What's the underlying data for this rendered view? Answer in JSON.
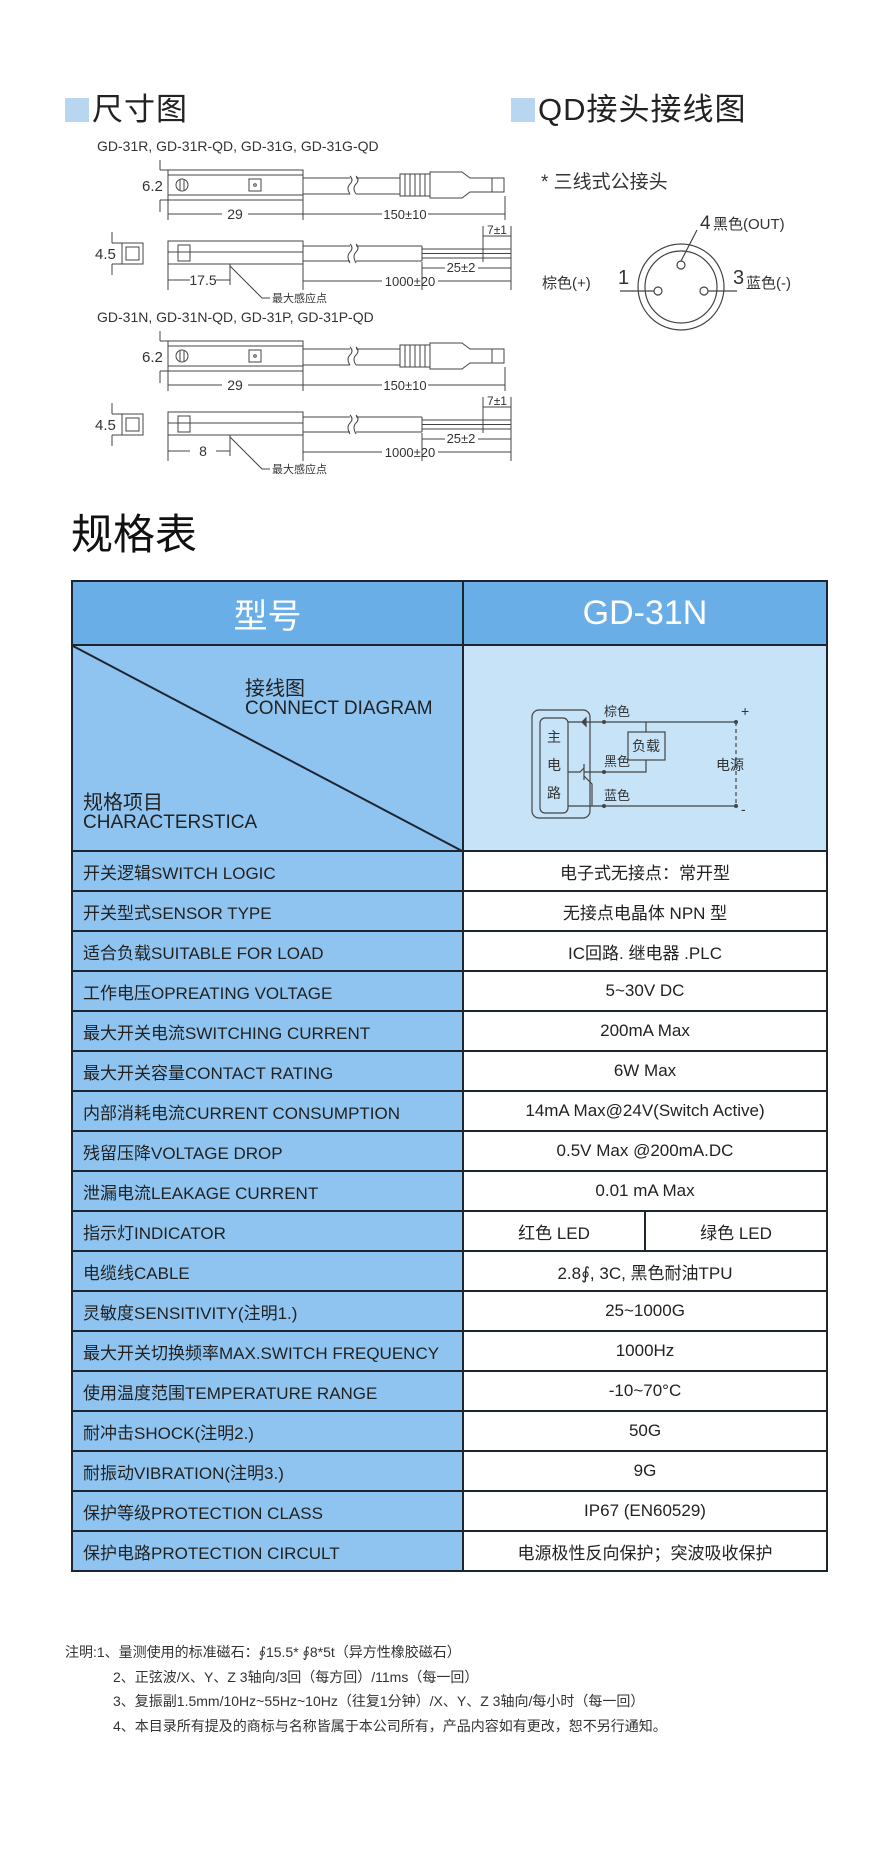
{
  "dimensions": {
    "title": "尺寸图",
    "models_1": "GD-31R, GD-31R-QD, GD-31G, GD-31G-QD",
    "models_2": "GD-31N, GD-31N-QD, GD-31P, GD-31P-QD",
    "height_top": "6.2",
    "length_body": "29",
    "length_cable_qd": "150±10",
    "height_side": "4.5",
    "strip_length": "7±1",
    "sheath_length": "25±2",
    "cable_length": "1000±20",
    "sense_offset_1": "17.5",
    "sense_offset_2": "8",
    "sense_point_label": "最大感应点"
  },
  "qd_wiring": {
    "title": "QD接头接线图",
    "subtitle": "* 三线式公接头",
    "pin4_num": "4",
    "pin4_label": "黑色(OUT)",
    "pin1_num": "1",
    "pin1_label": "棕色(+)",
    "pin3_num": "3",
    "pin3_label": "蓝色(-)"
  },
  "spec": {
    "title": "规格表",
    "header_left": "型号",
    "header_right": "GD-31N",
    "diag_top_cn": "接线图",
    "diag_top_en": "CONNECT DIAGRAM",
    "diag_bottom_cn": "规格项目",
    "diag_bottom_en": "CHARACTERSTICA",
    "circuit": {
      "main_circuit": [
        "主",
        "电",
        "路"
      ],
      "brown": "棕色",
      "black": "黑色",
      "blue": "蓝色",
      "load": "负载",
      "power": "电源",
      "plus": "+",
      "minus": "-"
    },
    "rows": [
      {
        "label": "开关逻辑SWITCH LOGIC",
        "value": "电子式无接点：常开型"
      },
      {
        "label": "开关型式SENSOR TYPE",
        "value": "无接点电晶体 NPN 型"
      },
      {
        "label": "适合负载SUITABLE FOR LOAD",
        "value": "IC回路. 继电器 .PLC"
      },
      {
        "label": "工作电压OPREATING VOLTAGE",
        "value": "5~30V DC"
      },
      {
        "label": "最大开关电流SWITCHING CURRENT",
        "value": "200mA Max"
      },
      {
        "label": "最大开关容量CONTACT RATING",
        "value": "6W Max"
      },
      {
        "label": "内部消耗电流CURRENT CONSUMPTION",
        "value": "14mA Max@24V(Switch Active)"
      },
      {
        "label": "残留压降VOLTAGE DROP",
        "value": "0.5V Max @200mA.DC"
      },
      {
        "label": "泄漏电流LEAKAGE CURRENT",
        "value": "0.01 mA Max"
      },
      {
        "label": "指示灯INDICATOR",
        "value_a": "红色 LED",
        "value_b": "绿色 LED"
      },
      {
        "label": "电缆线CABLE",
        "value": "2.8∮, 3C, 黑色耐油TPU"
      },
      {
        "label": "灵敏度SENSITIVITY(注明1.)",
        "value": "25~1000G"
      },
      {
        "label": "最大开关切换频率MAX.SWITCH FREQUENCY",
        "value": "1000Hz"
      },
      {
        "label": "使用温度范围TEMPERATURE RANGE",
        "value": "-10~70°C"
      },
      {
        "label": "耐冲击SHOCK(注明2.)",
        "value": "50G"
      },
      {
        "label": "耐振动VIBRATION(注明3.)",
        "value": "9G"
      },
      {
        "label": "保护等级PROTECTION CLASS",
        "value": "IP67 (EN60529)"
      },
      {
        "label": "保护电路PROTECTION CIRCULT",
        "value": "电源极性反向保护；突波吸收保护"
      }
    ]
  },
  "notes": [
    "注明:1、量测使用的标准磁石：∮15.5* ∮8*5t（异方性橡胶磁石）",
    "2、正弦波/X、Y、Z 3轴向/3回（每方回）/11ms（每一回）",
    "3、复振副1.5mm/10Hz~55Hz~10Hz（往复1分钟）/X、Y、Z 3轴向/每小时（每一回）",
    "4、本目录所有提及的商标与名称皆属于本公司所有，产品内容如有更改，恕不另行通知。"
  ],
  "colors": {
    "header_blue": "#6aaee8",
    "label_blue": "#90c4f0",
    "diagram_blue": "#c6e3f8",
    "section_marker": "#b8d6f0"
  }
}
